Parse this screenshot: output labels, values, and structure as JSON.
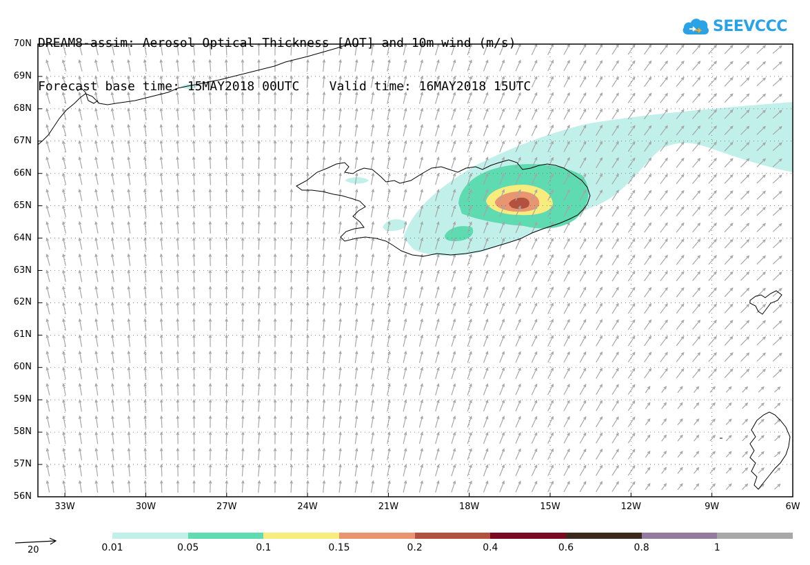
{
  "title": {
    "line1": "DREAM8-assim: Aerosol Optical Thickness [AOT] and 10m wind (m/s)",
    "line2": "Forecast base time: 15MAY2018 00UTC    Valid time: 16MAY2018 15UTC"
  },
  "logo": {
    "text": "SEEVCCC",
    "icon": "cloud-icon"
  },
  "map": {
    "lat_labels": [
      "70N",
      "69N",
      "68N",
      "67N",
      "66N",
      "65N",
      "64N",
      "63N",
      "62N",
      "61N",
      "60N",
      "59N",
      "58N",
      "57N",
      "56N"
    ],
    "lon_labels": [
      "33W",
      "30W",
      "27W",
      "24W",
      "21W",
      "18W",
      "15W",
      "12W",
      "9W",
      "6W"
    ],
    "colors": {
      "frame": "#000000",
      "wind_arrow": "#a6a6a6",
      "coastline": "#000000",
      "grid": "#666666"
    }
  },
  "wind_reference": {
    "label": "20"
  },
  "legend": {
    "labels": [
      "0.01",
      "0.05",
      "0.1",
      "0.15",
      "0.2",
      "0.4",
      "0.6",
      "0.8",
      "1"
    ],
    "colors": [
      "#c1f0ea",
      "#5edbb1",
      "#f7ec7d",
      "#e89570",
      "#b2523e",
      "#7a0a22",
      "#3a2a1e",
      "#957a9f",
      "#a8a8a8"
    ]
  }
}
